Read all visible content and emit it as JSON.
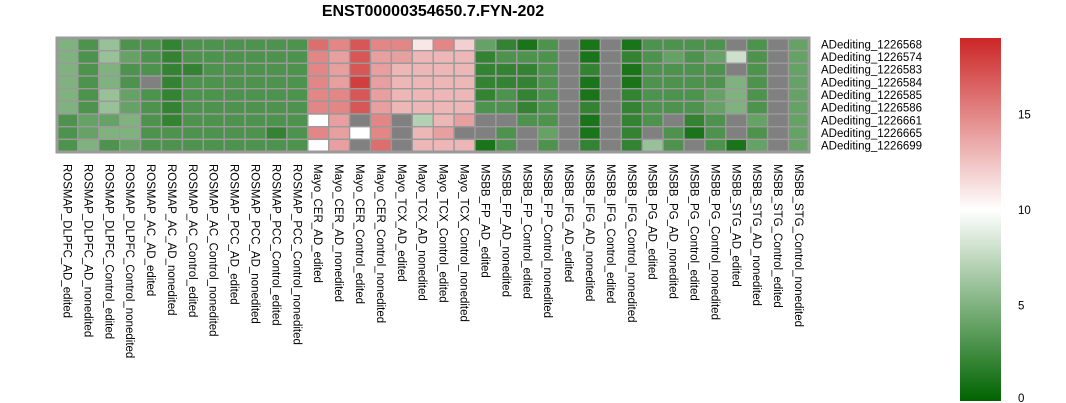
{
  "chart_data": {
    "type": "heatmap",
    "title": "ENST00000354650.7.FYN-202",
    "rows": [
      "ADediting_1226568",
      "ADediting_1226574",
      "ADediting_1226583",
      "ADediting_1226584",
      "ADediting_1226585",
      "ADediting_1226586",
      "ADediting_1226661",
      "ADediting_1226665",
      "ADediting_1226699"
    ],
    "columns": [
      "ROSMAP_DLPFC_AD_edited",
      "ROSMAP_DLPFC_AD_nonedited",
      "ROSMAP_DLPFC_Control_edited",
      "ROSMAP_DLPFC_Control_nonedited",
      "ROSMAP_AC_AD_edited",
      "ROSMAP_AC_AD_nonedited",
      "ROSMAP_AC_Control_edited",
      "ROSMAP_AC_Control_nonedited",
      "ROSMAP_PCC_AD_edited",
      "ROSMAP_PCC_AD_nonedited",
      "ROSMAP_PCC_Control_edited",
      "ROSMAP_PCC_Control_nonedited",
      "Mayo_CER_AD_edited",
      "Mayo_CER_AD_nonedited",
      "Mayo_CER_Control_edited",
      "Mayo_CER_Control_nonedited",
      "Mayo_TCX_AD_edited",
      "Mayo_TCX_AD_nonedited",
      "Mayo_TCX_Control_edited",
      "Mayo_TCX_Control_nonedited",
      "MSBB_FP_AD_edited",
      "MSBB_FP_AD_nonedited",
      "MSBB_FP_Control_edited",
      "MSBB_FP_Control_nonedited",
      "MSBB_IFG_AD_edited",
      "MSBB_IFG_AD_nonedited",
      "MSBB_IFG_Control_edited",
      "MSBB_IFG_Control_nonedited",
      "MSBB_PG_AD_edited",
      "MSBB_PG_AD_nonedited",
      "MSBB_PG_Control_edited",
      "MSBB_PG_Control_nonedited",
      "MSBB_STG_AD_edited",
      "MSBB_STG_AD_nonedited",
      "MSBB_STG_Control_edited",
      "MSBB_STG_Control_nonedited"
    ],
    "values": [
      [
        5,
        3,
        6,
        3,
        3,
        2,
        3,
        3,
        3,
        3,
        3,
        3,
        16,
        15,
        17,
        15,
        15,
        11,
        15,
        12,
        4,
        2,
        1,
        3,
        null,
        1,
        null,
        1,
        3,
        3,
        3,
        3,
        null,
        3,
        null,
        4
      ],
      [
        5,
        3,
        6,
        4,
        3,
        2,
        3,
        3,
        3,
        3,
        3,
        3,
        15,
        14,
        17,
        14,
        14,
        13,
        13,
        13,
        2,
        3,
        3,
        3,
        null,
        1,
        null,
        2,
        3,
        4,
        3,
        4,
        8,
        3,
        null,
        4
      ],
      [
        5,
        3,
        5,
        3,
        3,
        2,
        2,
        3,
        3,
        3,
        3,
        3,
        15,
        14,
        17,
        14,
        13,
        13,
        13,
        13,
        2,
        2,
        2,
        3,
        null,
        2,
        null,
        1,
        3,
        3,
        3,
        3,
        null,
        3,
        null,
        4
      ],
      [
        5,
        3,
        5,
        3,
        null,
        2,
        3,
        3,
        3,
        3,
        3,
        3,
        15,
        14,
        18,
        14,
        13,
        13,
        13,
        13,
        2,
        2,
        2,
        3,
        null,
        1,
        null,
        1,
        3,
        3,
        3,
        3,
        5,
        3,
        null,
        4
      ],
      [
        5,
        3,
        6,
        4,
        3,
        2,
        3,
        3,
        3,
        3,
        3,
        3,
        15,
        15,
        17,
        14,
        13,
        13,
        13,
        13,
        2,
        3,
        2,
        3,
        null,
        1,
        null,
        2,
        3,
        3,
        3,
        4,
        5,
        3,
        null,
        4
      ],
      [
        5,
        3,
        6,
        4,
        3,
        2,
        3,
        3,
        3,
        3,
        3,
        3,
        15,
        15,
        17,
        14,
        13,
        13,
        13,
        13,
        3,
        3,
        2,
        3,
        null,
        2,
        null,
        2,
        3,
        3,
        3,
        4,
        5,
        3,
        null,
        4
      ],
      [
        3,
        4,
        4,
        5,
        3,
        2,
        3,
        3,
        3,
        3,
        3,
        3,
        10,
        14,
        null,
        15,
        null,
        7,
        13,
        14,
        null,
        null,
        3,
        3,
        null,
        1,
        null,
        2,
        3,
        null,
        2,
        3,
        null,
        4,
        null,
        4
      ],
      [
        3,
        4,
        5,
        5,
        3,
        3,
        3,
        3,
        3,
        3,
        2,
        3,
        15,
        14,
        10,
        15,
        null,
        13,
        14,
        null,
        null,
        3,
        null,
        4,
        null,
        1,
        null,
        2,
        null,
        3,
        1,
        3,
        null,
        3,
        null,
        4
      ],
      [
        3,
        5,
        3,
        4,
        3,
        3,
        3,
        3,
        3,
        3,
        3,
        3,
        10,
        14,
        null,
        16,
        null,
        13,
        13,
        13,
        1,
        3,
        null,
        3,
        null,
        2,
        null,
        2,
        6,
        3,
        null,
        3,
        1,
        4,
        null,
        4
      ]
    ],
    "zlim": [
      0,
      19
    ],
    "na_color": "#808080",
    "colorscale": [
      "#006400",
      "#ffffff",
      "#cc2626"
    ],
    "legend_ticks": [
      "0",
      "5",
      "10",
      "15"
    ]
  }
}
